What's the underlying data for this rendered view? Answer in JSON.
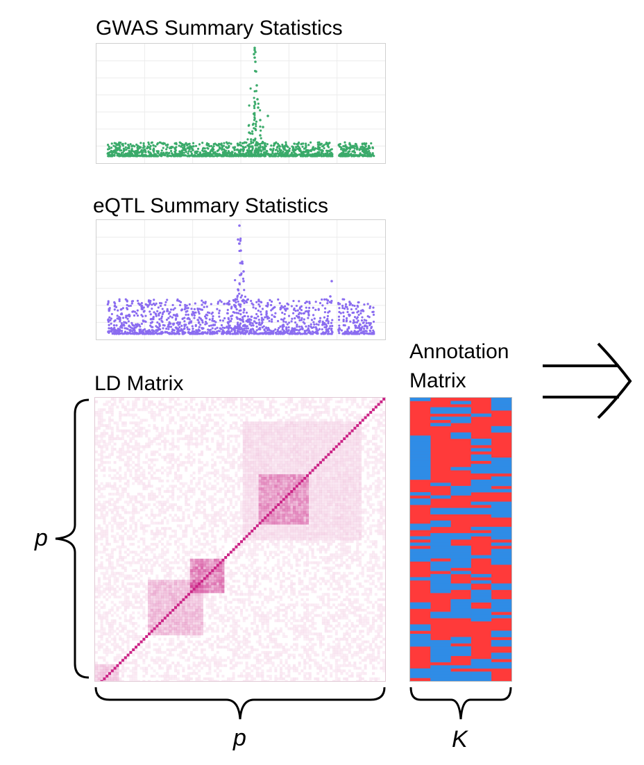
{
  "gwas": {
    "title": "GWAS Summary Statistics",
    "color": "#3aaa6a"
  },
  "eqtl": {
    "title": "eQTL Summary Statistics",
    "color": "#8a6cf0"
  },
  "ld": {
    "title": "LD Matrix",
    "color": "#c8187f",
    "row_label": "p",
    "col_label": "p"
  },
  "annotation": {
    "title_line1": "Annotation",
    "title_line2": "Matrix",
    "colors": [
      "#ff3a3a",
      "#2f8ce6"
    ],
    "col_label": "K"
  }
}
